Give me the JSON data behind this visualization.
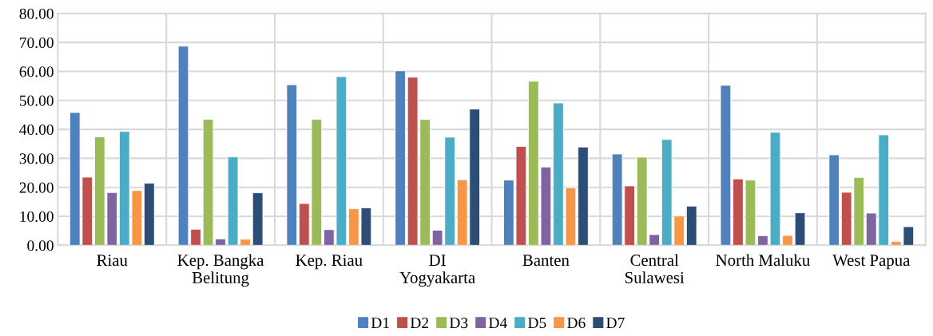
{
  "chart_data": {
    "type": "bar",
    "categories": [
      "Riau",
      "Kep. Bangka\nBelitung",
      "Kep. Riau",
      "DI\nYogyakarta",
      "Banten",
      "Central\nSulawesi",
      "North Maluku",
      "West Papua"
    ],
    "series": [
      {
        "name": "D1",
        "color": "#4f81bd",
        "values": [
          45.8,
          68.7,
          55.4,
          60.2,
          22.5,
          31.5,
          55.2,
          31.2
        ]
      },
      {
        "name": "D2",
        "color": "#c0504d",
        "values": [
          23.5,
          5.5,
          14.4,
          58.0,
          34.1,
          20.5,
          22.9,
          18.3
        ]
      },
      {
        "name": "D3",
        "color": "#9bbb59",
        "values": [
          37.4,
          43.5,
          43.5,
          43.4,
          56.6,
          30.4,
          22.5,
          23.4
        ]
      },
      {
        "name": "D4",
        "color": "#8064a2",
        "values": [
          18.2,
          2.2,
          5.4,
          5.2,
          27.0,
          3.7,
          3.3,
          11.1
        ]
      },
      {
        "name": "D5",
        "color": "#4bacc6",
        "values": [
          39.3,
          30.5,
          58.2,
          37.3,
          49.1,
          36.5,
          39.0,
          38.1
        ]
      },
      {
        "name": "D6",
        "color": "#f79646",
        "values": [
          18.9,
          2.1,
          12.6,
          22.6,
          19.8,
          10.1,
          3.4,
          1.3
        ]
      },
      {
        "name": "D7",
        "color": "#2c4d75",
        "values": [
          21.4,
          18.1,
          12.9,
          47.0,
          33.9,
          13.5,
          11.2,
          6.4
        ]
      }
    ],
    "ylim": [
      0,
      80
    ],
    "yticks": [
      {
        "value": 0,
        "label": "0.00"
      },
      {
        "value": 10,
        "label": "10.00"
      },
      {
        "value": 20,
        "label": "20.00"
      },
      {
        "value": 30,
        "label": "30.00"
      },
      {
        "value": 40,
        "label": "40.00"
      },
      {
        "value": 50,
        "label": "50.00"
      },
      {
        "value": 60,
        "label": "60.00"
      },
      {
        "value": 70,
        "label": "70.00"
      },
      {
        "value": 80,
        "label": "80.00"
      }
    ],
    "grid": true,
    "legend": "bottom"
  }
}
